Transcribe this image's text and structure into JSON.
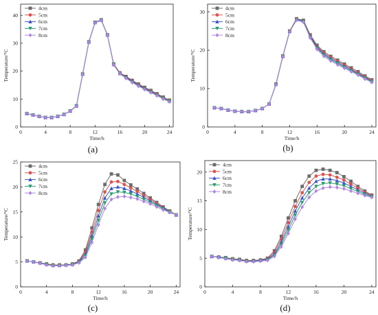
{
  "figure": {
    "series_names": [
      "4cm",
      "5cm",
      "6cm",
      "7cm",
      "8cm"
    ],
    "series_colors": [
      "#6b6b6b",
      "#d9534f",
      "#3a55c8",
      "#2a9d6e",
      "#b084e0"
    ],
    "series_markers": [
      "square",
      "circle",
      "triangle-up",
      "triangle-down",
      "diamond"
    ]
  },
  "chart_data": [
    {
      "type": "line",
      "panel_label": "(a)",
      "xlabel": "Time/h",
      "ylabel": "Temperature/°C",
      "xlim": [
        0,
        24.6
      ],
      "ylim": [
        0,
        44
      ],
      "xticks": [
        0,
        4,
        8,
        12,
        16,
        20,
        24
      ],
      "yticks": [
        0,
        10,
        20,
        30,
        40
      ],
      "legend_position": "top-left",
      "x": [
        1,
        2,
        3,
        4,
        5,
        6,
        7,
        8,
        9,
        10,
        11,
        12,
        13,
        14,
        15,
        16,
        17,
        18,
        19,
        20,
        21,
        22,
        23,
        24
      ],
      "series": [
        {
          "name": "4cm",
          "values": [
            4.8,
            4.3,
            3.8,
            3.4,
            3.4,
            3.8,
            4.5,
            5.8,
            7.6,
            19,
            30.5,
            37.5,
            38.4,
            33,
            22.6,
            19.4,
            18.1,
            16.7,
            15.4,
            14.2,
            13.1,
            11.9,
            10.7,
            9.6
          ]
        },
        {
          "name": "5cm",
          "values": [
            4.8,
            4.3,
            3.8,
            3.4,
            3.4,
            3.8,
            4.5,
            5.7,
            7.5,
            18.9,
            30.4,
            37.4,
            38.3,
            32.9,
            22.5,
            19.3,
            17.9,
            16.5,
            15.2,
            14.0,
            12.9,
            11.7,
            10.5,
            9.4
          ]
        },
        {
          "name": "6cm",
          "values": [
            4.8,
            4.3,
            3.8,
            3.4,
            3.4,
            3.8,
            4.5,
            5.7,
            7.5,
            18.9,
            30.4,
            37.4,
            38.3,
            32.9,
            22.4,
            19.2,
            17.8,
            16.3,
            15.0,
            13.8,
            12.7,
            11.5,
            10.3,
            9.3
          ]
        },
        {
          "name": "7cm",
          "values": [
            4.8,
            4.3,
            3.8,
            3.4,
            3.4,
            3.8,
            4.5,
            5.7,
            7.5,
            18.8,
            30.3,
            37.3,
            38.2,
            32.8,
            22.3,
            19.1,
            17.6,
            16.1,
            14.8,
            13.6,
            12.5,
            11.4,
            10.2,
            9.2
          ]
        },
        {
          "name": "8cm",
          "values": [
            4.8,
            4.3,
            3.8,
            3.4,
            3.4,
            3.8,
            4.5,
            5.7,
            7.4,
            18.8,
            30.3,
            37.3,
            38.2,
            32.8,
            22.2,
            19.0,
            17.4,
            15.9,
            14.6,
            13.4,
            12.3,
            11.2,
            10.0,
            9.0
          ]
        }
      ]
    },
    {
      "type": "line",
      "panel_label": "(b)",
      "xlabel": "Time/h",
      "ylabel": "Temperature/°C",
      "xlim": [
        0,
        24.6
      ],
      "ylim": [
        0,
        32
      ],
      "xticks": [
        0,
        4,
        8,
        12,
        16,
        20,
        24
      ],
      "yticks": [
        0,
        10,
        20,
        30
      ],
      "legend_position": "top-left",
      "x": [
        1,
        2,
        3,
        4,
        5,
        6,
        7,
        8,
        9,
        10,
        11,
        12,
        13,
        14,
        15,
        16,
        17,
        18,
        19,
        20,
        21,
        22,
        23,
        24
      ],
      "series": [
        {
          "name": "4cm",
          "values": [
            5.0,
            4.8,
            4.4,
            4.1,
            4.0,
            4.0,
            4.3,
            4.8,
            6.0,
            11.2,
            18.5,
            25,
            28.2,
            27.8,
            24,
            21.3,
            19.6,
            18.4,
            17.4,
            16.4,
            15.4,
            14.4,
            13.3,
            12.3
          ]
        },
        {
          "name": "5cm",
          "values": [
            5.0,
            4.8,
            4.4,
            4.1,
            4.0,
            4.0,
            4.3,
            4.8,
            6.0,
            11.2,
            18.5,
            25,
            28.1,
            27.7,
            23.8,
            21.0,
            19.3,
            18.1,
            17.1,
            16.1,
            15.1,
            14.1,
            13.1,
            12.1
          ]
        },
        {
          "name": "6cm",
          "values": [
            5.0,
            4.8,
            4.4,
            4.1,
            4.0,
            4.0,
            4.3,
            4.8,
            6.0,
            11.1,
            18.4,
            24.9,
            28.0,
            27.6,
            23.6,
            20.8,
            19.0,
            17.8,
            16.8,
            15.8,
            14.9,
            13.9,
            12.9,
            11.9
          ]
        },
        {
          "name": "7cm",
          "values": [
            5.0,
            4.8,
            4.4,
            4.1,
            4.0,
            4.0,
            4.3,
            4.8,
            6.0,
            11.1,
            18.4,
            24.9,
            27.9,
            27.5,
            23.4,
            20.5,
            18.7,
            17.5,
            16.5,
            15.5,
            14.6,
            13.7,
            12.7,
            11.8
          ]
        },
        {
          "name": "8cm",
          "values": [
            5.0,
            4.8,
            4.4,
            4.1,
            4.0,
            4.0,
            4.3,
            4.8,
            6.0,
            11.0,
            18.3,
            24.8,
            27.8,
            27.3,
            23.2,
            20.2,
            18.4,
            17.2,
            16.2,
            15.3,
            14.4,
            13.5,
            12.5,
            11.6
          ]
        }
      ]
    },
    {
      "type": "line",
      "panel_label": "(c)",
      "xlabel": "Time/h",
      "ylabel": "Temperature/°C",
      "xlim": [
        0,
        24.6
      ],
      "ylim": [
        0,
        25
      ],
      "xticks": [
        0,
        4,
        8,
        12,
        16,
        20,
        24
      ],
      "yticks": [
        0,
        5,
        10,
        15,
        20,
        25
      ],
      "legend_position": "top-left",
      "x": [
        1,
        2,
        3,
        4,
        5,
        6,
        7,
        8,
        9,
        10,
        11,
        12,
        13,
        14,
        15,
        16,
        17,
        18,
        19,
        20,
        21,
        22,
        23,
        24
      ],
      "series": [
        {
          "name": "4cm",
          "values": [
            5.2,
            5.0,
            4.8,
            4.6,
            4.4,
            4.4,
            4.4,
            4.6,
            5.2,
            7.4,
            11.8,
            16.5,
            20.5,
            22.6,
            22.4,
            21.3,
            20.4,
            19.6,
            18.7,
            17.8,
            16.9,
            16.0,
            15.2,
            14.4
          ]
        },
        {
          "name": "5cm",
          "values": [
            5.2,
            5.0,
            4.8,
            4.6,
            4.4,
            4.4,
            4.4,
            4.6,
            5.1,
            7.0,
            11.0,
            15.3,
            19.0,
            21.0,
            21.1,
            20.5,
            19.8,
            19.1,
            18.3,
            17.5,
            16.7,
            15.9,
            15.1,
            14.4
          ]
        },
        {
          "name": "6cm",
          "values": [
            5.2,
            5.0,
            4.8,
            4.5,
            4.3,
            4.3,
            4.4,
            4.5,
            5.0,
            6.6,
            10.2,
            14.2,
            17.8,
            19.7,
            20.0,
            19.7,
            19.2,
            18.6,
            17.9,
            17.2,
            16.5,
            15.8,
            15.0,
            14.4
          ]
        },
        {
          "name": "7cm",
          "values": [
            5.2,
            5.0,
            4.7,
            4.5,
            4.3,
            4.3,
            4.3,
            4.5,
            4.9,
            6.2,
            9.6,
            13.3,
            16.8,
            18.6,
            19.0,
            18.9,
            18.6,
            18.1,
            17.5,
            16.9,
            16.3,
            15.6,
            15.0,
            14.4
          ]
        },
        {
          "name": "8cm",
          "values": [
            5.2,
            5.0,
            4.7,
            4.4,
            4.2,
            4.2,
            4.3,
            4.4,
            4.8,
            5.9,
            8.9,
            12.4,
            15.7,
            17.5,
            18.0,
            18.1,
            17.9,
            17.6,
            17.1,
            16.6,
            16.0,
            15.4,
            14.9,
            14.4
          ]
        }
      ]
    },
    {
      "type": "line",
      "panel_label": "(d)",
      "xlabel": "Time/h",
      "ylabel": "Temperature/°C",
      "xlim": [
        0,
        24.6
      ],
      "ylim": [
        0,
        22
      ],
      "xticks": [
        0,
        4,
        8,
        12,
        16,
        20,
        24
      ],
      "yticks": [
        0,
        5,
        10,
        15,
        20
      ],
      "legend_position": "top-left",
      "x": [
        1,
        2,
        3,
        4,
        5,
        6,
        7,
        8,
        9,
        10,
        11,
        12,
        13,
        14,
        15,
        16,
        17,
        18,
        19,
        20,
        21,
        22,
        23,
        24
      ],
      "series": [
        {
          "name": "4cm",
          "values": [
            5.3,
            5.2,
            5.1,
            4.9,
            4.8,
            4.6,
            4.6,
            4.7,
            5.0,
            6.3,
            8.8,
            12.0,
            15.0,
            17.5,
            19.3,
            20.3,
            20.5,
            20.3,
            19.9,
            19.2,
            18.4,
            17.5,
            16.7,
            16.0
          ]
        },
        {
          "name": "5cm",
          "values": [
            5.3,
            5.2,
            5.0,
            4.9,
            4.7,
            4.6,
            4.5,
            4.6,
            4.9,
            6.0,
            8.3,
            11.2,
            14.0,
            16.4,
            18.2,
            19.3,
            19.6,
            19.5,
            19.1,
            18.6,
            17.9,
            17.2,
            16.5,
            15.9
          ]
        },
        {
          "name": "6cm",
          "values": [
            5.3,
            5.2,
            5.0,
            4.8,
            4.7,
            4.5,
            4.5,
            4.6,
            4.8,
            5.7,
            7.8,
            10.5,
            13.2,
            15.5,
            17.2,
            18.4,
            18.8,
            18.8,
            18.5,
            18.1,
            17.5,
            16.9,
            16.3,
            15.8
          ]
        },
        {
          "name": "7cm",
          "values": [
            5.3,
            5.1,
            5.0,
            4.8,
            4.6,
            4.5,
            4.4,
            4.5,
            4.7,
            5.5,
            7.4,
            9.9,
            12.5,
            14.7,
            16.4,
            17.5,
            18.0,
            18.1,
            17.9,
            17.6,
            17.1,
            16.6,
            16.1,
            15.7
          ]
        },
        {
          "name": "8cm",
          "values": [
            5.3,
            5.1,
            4.9,
            4.7,
            4.6,
            4.4,
            4.4,
            4.5,
            4.6,
            5.3,
            7.0,
            9.3,
            11.8,
            13.9,
            15.6,
            16.7,
            17.2,
            17.4,
            17.3,
            17.1,
            16.7,
            16.3,
            15.9,
            15.6
          ]
        }
      ]
    }
  ]
}
